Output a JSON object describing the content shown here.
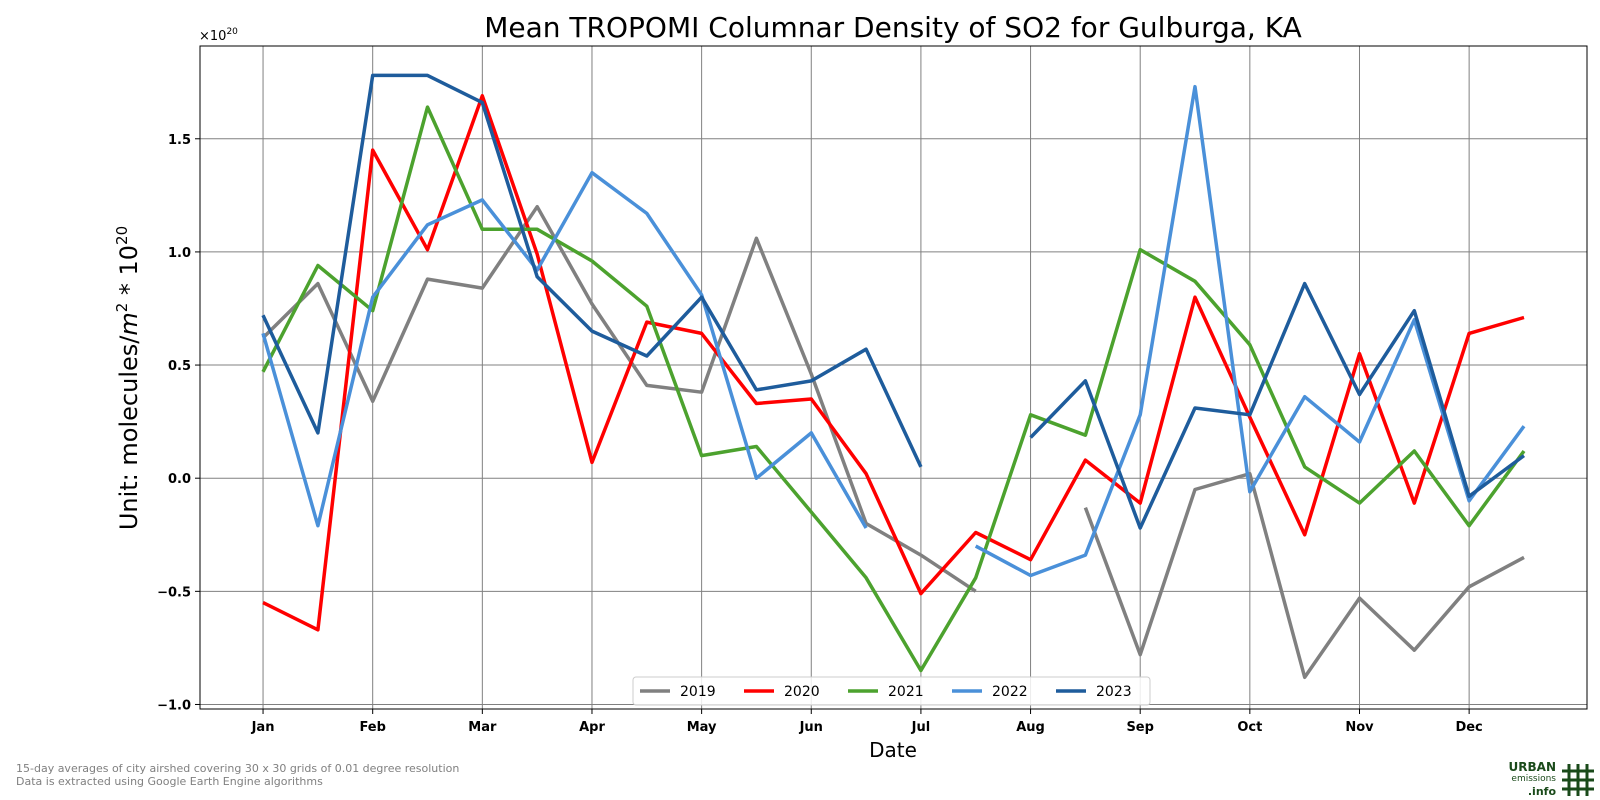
{
  "chart_data": {
    "type": "line",
    "title": "Mean TROPOMI Columnar Density of SO2 for Gulburga, KA",
    "xlabel": "Date",
    "ylabel_base": "Unit: molecules/",
    "ylabel_m": "m",
    "ylabel_exp": "2",
    "ylabel_mid": " * 10",
    "ylabel_exp2": "20",
    "offset_text_base": "×10",
    "offset_text_exp": "20",
    "ylim": [
      -1.02,
      1.91
    ],
    "xlim": [
      -1.15,
      24.15
    ],
    "y_ticks": [
      "−1.0",
      "−0.5",
      "0.0",
      "0.5",
      "1.0",
      "1.5"
    ],
    "y_tick_values": [
      -1.0,
      -0.5,
      0.0,
      0.5,
      1.0,
      1.5
    ],
    "x_tick_labels": [
      "Jan",
      "Feb",
      "Mar",
      "Apr",
      "May",
      "Jun",
      "Jul",
      "Aug",
      "Sep",
      "Oct",
      "Nov",
      "Dec"
    ],
    "x_tick_positions": [
      0,
      2,
      4,
      6,
      8,
      10,
      12,
      14,
      16,
      18,
      20,
      22
    ],
    "grid": true,
    "legend_position": "bottom-center",
    "series": [
      {
        "name": "2019",
        "color": "#808080",
        "values": [
          0.62,
          0.86,
          0.34,
          0.88,
          0.84,
          1.2,
          0.77,
          0.41,
          0.38,
          1.06,
          0.46,
          -0.2,
          -0.34,
          -0.5,
          null,
          -0.13,
          -0.78,
          -0.05,
          0.02,
          -0.88,
          -0.53,
          -0.76,
          -0.48,
          -0.35
        ]
      },
      {
        "name": "2020",
        "color": "#ff0000",
        "values": [
          -0.55,
          -0.67,
          1.45,
          1.01,
          1.69,
          0.99,
          0.07,
          0.69,
          0.64,
          0.33,
          0.35,
          0.02,
          -0.51,
          -0.24,
          -0.36,
          0.08,
          -0.11,
          0.8,
          0.27,
          -0.25,
          0.55,
          -0.11,
          0.64,
          0.71
        ]
      },
      {
        "name": "2021",
        "color": "#4ca22e",
        "values": [
          0.47,
          0.94,
          0.74,
          1.64,
          1.1,
          1.1,
          0.96,
          0.76,
          0.1,
          0.14,
          -0.15,
          -0.44,
          -0.85,
          -0.44,
          0.28,
          0.19,
          1.01,
          0.87,
          0.59,
          0.05,
          -0.11,
          0.12,
          -0.21,
          0.12
        ]
      },
      {
        "name": "2022",
        "color": "#4a90d9",
        "values": [
          0.64,
          -0.21,
          0.8,
          1.12,
          1.23,
          0.92,
          1.35,
          1.17,
          0.81,
          0.0,
          0.2,
          -0.22,
          null,
          -0.3,
          -0.43,
          -0.34,
          0.28,
          1.73,
          -0.06,
          0.36,
          0.16,
          0.7,
          -0.1,
          0.23
        ]
      },
      {
        "name": "2023",
        "color": "#1e5c9c",
        "values": [
          0.72,
          0.2,
          1.78,
          1.78,
          1.66,
          0.89,
          0.65,
          0.54,
          0.8,
          0.39,
          0.43,
          0.57,
          0.05,
          null,
          0.18,
          0.43,
          -0.22,
          0.31,
          0.28,
          0.86,
          0.37,
          0.74,
          -0.08,
          0.1
        ]
      }
    ]
  },
  "footnote": {
    "line1": "15-day averages of city airshed covering 30 x 30 grids of 0.01 degree resolution",
    "line2": "Data is extracted using Google Earth Engine algorithms"
  },
  "logo": {
    "line1": "URBAN",
    "line2": "emissions",
    "line3": ".info",
    "color": "#1a4a1a"
  }
}
